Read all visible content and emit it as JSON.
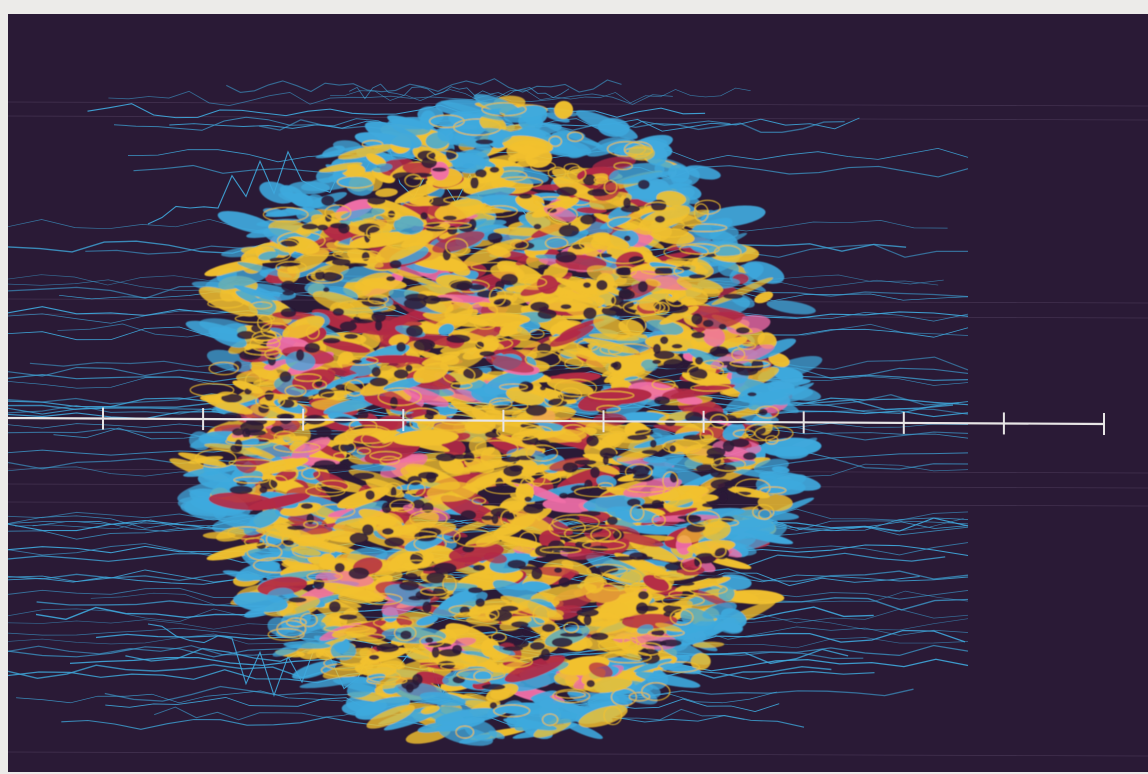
{
  "image": {
    "kind": "false-color contour map",
    "colors": {
      "background": "#2a1a36",
      "outer_contour": "#3fa9dd",
      "mid_fill": "#f2c12e",
      "hot_fill": "#b32a45",
      "peak": "#f06fa8",
      "axis": "#e8e6e6",
      "ghost_line": "#6f5c7e"
    },
    "axis": {
      "tick_count": 11,
      "tick_labels": []
    },
    "legend": null
  }
}
